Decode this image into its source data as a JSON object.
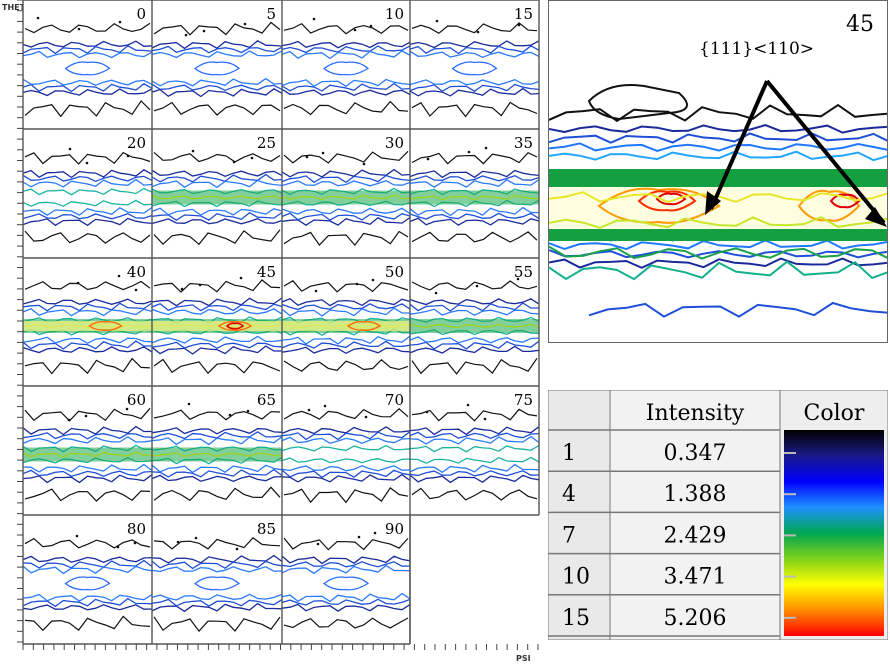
{
  "axes": {
    "theta_label": "THETA",
    "psi_label": "PSI"
  },
  "sections": [
    {
      "label": "0"
    },
    {
      "label": "5"
    },
    {
      "label": "10"
    },
    {
      "label": "15"
    },
    {
      "label": "20"
    },
    {
      "label": "25"
    },
    {
      "label": "30"
    },
    {
      "label": "35"
    },
    {
      "label": "40"
    },
    {
      "label": "45"
    },
    {
      "label": "50"
    },
    {
      "label": "55"
    },
    {
      "label": "60"
    },
    {
      "label": "65"
    },
    {
      "label": "70"
    },
    {
      "label": "75"
    },
    {
      "label": "80"
    },
    {
      "label": "85"
    },
    {
      "label": "90"
    }
  ],
  "zoom": {
    "label": "45",
    "annotation": "{111}<110>"
  },
  "legend": {
    "headers": {
      "intensity": "Intensity",
      "color": "Color"
    },
    "rows": [
      {
        "level": "1",
        "intensity": "0.347"
      },
      {
        "level": "4",
        "intensity": "1.388"
      },
      {
        "level": "7",
        "intensity": "2.429"
      },
      {
        "level": "10",
        "intensity": "3.471"
      },
      {
        "level": "15",
        "intensity": "5.206"
      }
    ],
    "gradient_colors": [
      "#000000",
      "#1a1a8a",
      "#0000ff",
      "#1e90ff",
      "#00a651",
      "#7fd11b",
      "#ffff00",
      "#ff8c00",
      "#ff0000"
    ]
  }
}
